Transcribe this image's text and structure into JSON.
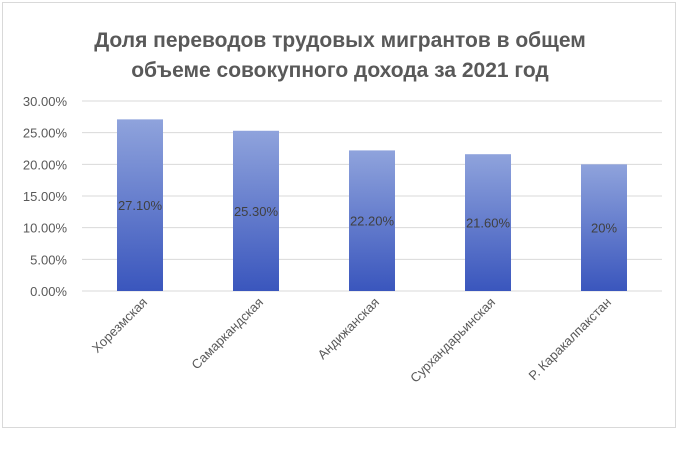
{
  "chart_data": {
    "type": "bar",
    "title": "Доля переводов трудовых мигрантов в общем объеме совокупного дохода за 2021 год",
    "title_lines": [
      "Доля переводов трудовых мигрантов в общем",
      "объеме совокупного дохода за 2021 год"
    ],
    "categories": [
      "Хорезмская",
      "Самаркандская",
      "Андижанская",
      "Сурхандарьинская",
      "Р. Каракалпакстан"
    ],
    "values": [
      27.1,
      25.3,
      22.2,
      21.6,
      20.0
    ],
    "data_labels": [
      "27.10%",
      "25.30%",
      "22.20%",
      "21.60%",
      "20%"
    ],
    "yticks": [
      0,
      5,
      10,
      15,
      20,
      25,
      30
    ],
    "ytick_labels": [
      "0.00%",
      "5.00%",
      "10.00%",
      "15.00%",
      "20.00%",
      "25.00%",
      "30.00%"
    ],
    "ylim": [
      0,
      30
    ],
    "grid": true,
    "legend": "none",
    "colors": {
      "bar_top": "#8fa3dc",
      "bar_bottom": "#3a56bd",
      "grid": "#d9d9d9",
      "text": "#595959"
    }
  }
}
